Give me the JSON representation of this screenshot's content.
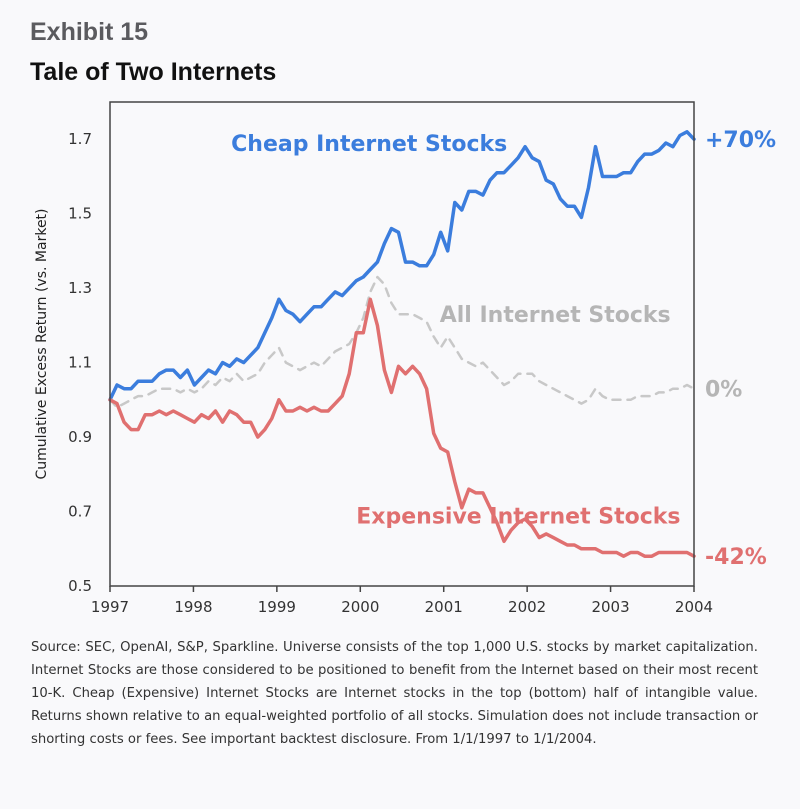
{
  "header": {
    "exhibit": "Exhibit 15",
    "title": "Tale of Two Internets"
  },
  "footnote": "Source: SEC, OpenAI, S&P, Sparkline. Universe consists of the top 1,000 U.S. stocks by market capitalization. Internet Stocks are those considered to be positioned to benefit from the Internet based on their most recent 10-K. Cheap (Expensive) Internet Stocks are Internet stocks in the top (bottom) half of intangible value. Returns shown relative to an equal-weighted portfolio of all stocks. Simulation does not include transaction or shorting costs or fees. See important backtest disclosure. From 1/1/1997 to 1/1/2004.",
  "chart_data": {
    "type": "line",
    "title": "Tale of Two Internets",
    "xlabel": "",
    "ylabel": "Cumulative Excess Return (vs. Market)",
    "xlim": [
      1997,
      2004
    ],
    "ylim": [
      0.5,
      1.8
    ],
    "xticks": [
      1997,
      1998,
      1999,
      2000,
      2001,
      2002,
      2003,
      2004
    ],
    "xtick_labels": [
      "1997",
      "1998",
      "1999",
      "2000",
      "2001",
      "2002",
      "2003",
      "2004"
    ],
    "yticks": [
      0.5,
      0.7,
      0.9,
      1.1,
      1.3,
      1.5,
      1.7
    ],
    "ytick_labels": [
      "0.5",
      "0.7",
      "0.9",
      "1.1",
      "1.3",
      "1.5",
      "1.7"
    ],
    "grid": false,
    "frame": "box",
    "series": [
      {
        "name": "Cheap Internet Stocks",
        "color": "#3b7ddd",
        "style": "solid",
        "end_label": "+70%",
        "values": [
          1.0,
          1.04,
          1.03,
          1.03,
          1.05,
          1.05,
          1.05,
          1.07,
          1.08,
          1.08,
          1.06,
          1.08,
          1.04,
          1.06,
          1.08,
          1.07,
          1.1,
          1.09,
          1.11,
          1.1,
          1.12,
          1.14,
          1.18,
          1.22,
          1.27,
          1.24,
          1.23,
          1.21,
          1.23,
          1.25,
          1.25,
          1.27,
          1.29,
          1.28,
          1.3,
          1.32,
          1.33,
          1.35,
          1.37,
          1.42,
          1.46,
          1.45,
          1.37,
          1.37,
          1.36,
          1.36,
          1.39,
          1.45,
          1.4,
          1.53,
          1.51,
          1.56,
          1.56,
          1.55,
          1.59,
          1.61,
          1.61,
          1.63,
          1.65,
          1.68,
          1.65,
          1.64,
          1.59,
          1.58,
          1.54,
          1.52,
          1.52,
          1.49,
          1.57,
          1.68,
          1.6,
          1.6,
          1.6,
          1.61,
          1.61,
          1.64,
          1.66,
          1.66,
          1.67,
          1.69,
          1.68,
          1.71,
          1.72,
          1.7
        ]
      },
      {
        "name": "All Internet Stocks",
        "color": "#c8c8c8",
        "style": "dashed",
        "end_label": "0%",
        "values": [
          1.0,
          0.98,
          0.99,
          1.0,
          1.01,
          1.01,
          1.02,
          1.03,
          1.03,
          1.03,
          1.02,
          1.03,
          1.02,
          1.03,
          1.05,
          1.04,
          1.06,
          1.05,
          1.07,
          1.05,
          1.06,
          1.07,
          1.1,
          1.12,
          1.14,
          1.1,
          1.09,
          1.08,
          1.09,
          1.1,
          1.09,
          1.11,
          1.13,
          1.14,
          1.15,
          1.18,
          1.22,
          1.29,
          1.33,
          1.31,
          1.26,
          1.23,
          1.23,
          1.23,
          1.22,
          1.21,
          1.17,
          1.14,
          1.17,
          1.14,
          1.11,
          1.1,
          1.09,
          1.1,
          1.08,
          1.06,
          1.04,
          1.05,
          1.07,
          1.07,
          1.07,
          1.05,
          1.04,
          1.03,
          1.02,
          1.01,
          1.0,
          0.99,
          1.0,
          1.03,
          1.01,
          1.0,
          1.0,
          1.0,
          1.0,
          1.01,
          1.01,
          1.01,
          1.02,
          1.02,
          1.03,
          1.03,
          1.04,
          1.03
        ]
      },
      {
        "name": "Expensive Internet Stocks",
        "color": "#e07070",
        "style": "solid",
        "end_label": "-42%",
        "values": [
          1.0,
          0.99,
          0.94,
          0.92,
          0.92,
          0.96,
          0.96,
          0.97,
          0.96,
          0.97,
          0.96,
          0.95,
          0.94,
          0.96,
          0.95,
          0.97,
          0.94,
          0.97,
          0.96,
          0.94,
          0.94,
          0.9,
          0.92,
          0.95,
          1.0,
          0.97,
          0.97,
          0.98,
          0.97,
          0.98,
          0.97,
          0.97,
          0.99,
          1.01,
          1.07,
          1.18,
          1.18,
          1.27,
          1.2,
          1.08,
          1.02,
          1.09,
          1.07,
          1.09,
          1.07,
          1.03,
          0.91,
          0.87,
          0.86,
          0.78,
          0.71,
          0.76,
          0.75,
          0.75,
          0.71,
          0.67,
          0.62,
          0.65,
          0.67,
          0.68,
          0.66,
          0.63,
          0.64,
          0.63,
          0.62,
          0.61,
          0.61,
          0.6,
          0.6,
          0.6,
          0.59,
          0.59,
          0.59,
          0.58,
          0.59,
          0.59,
          0.58,
          0.58,
          0.59,
          0.59,
          0.59,
          0.59,
          0.59,
          0.58
        ]
      }
    ],
    "annotations": [
      {
        "text": "Cheap Internet Stocks",
        "series": "Cheap Internet Stocks",
        "x": 1998.5,
        "y": 1.69,
        "color": "#3b7ddd"
      },
      {
        "text": "All Internet Stocks",
        "series": "All Internet Stocks",
        "x": 2001.0,
        "y": 1.23,
        "color": "#b5b5b5"
      },
      {
        "text": "Expensive Internet Stocks",
        "series": "Expensive Internet Stocks",
        "x": 2000.0,
        "y": 0.69,
        "color": "#e07070"
      }
    ]
  }
}
